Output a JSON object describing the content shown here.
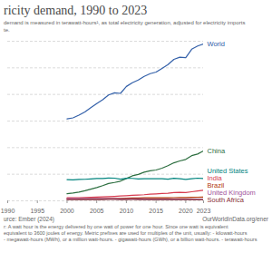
{
  "chart_data": {
    "type": "line",
    "title": "ricity demand, 1990 to 2023",
    "subtitle": [
      "demand is measured in terawatt-hours¹, as total electricity generation, adjusted for electricity imports",
      "te."
    ],
    "source": "urce: Ember (2024)",
    "url": "OurWorldInData.org/ener",
    "note": [
      "r: A watt hour is the energy delivered by one watt of power for one hour. Since one watt is equivalent",
      "equivalent to 3600 joules of energy. Metric prefixes are used for multiples of the unit, usually: - kilowatt-hours",
      "- megawatt-hours (MWh), or a million watt-hours. - gigawatt-hours (GWh), or a billion watt-hours. - terawatt-hours"
    ],
    "x": [
      2000,
      2001,
      2002,
      2003,
      2004,
      2005,
      2006,
      2007,
      2008,
      2009,
      2010,
      2011,
      2012,
      2013,
      2014,
      2015,
      2016,
      2017,
      2018,
      2019,
      2020,
      2021,
      2022,
      2023
    ],
    "xlim": [
      1990,
      2023
    ],
    "xticks": [
      1990,
      1995,
      2000,
      2005,
      2010,
      2015,
      2020,
      2023
    ],
    "ylim": [
      0,
      30000
    ],
    "yticks": [
      0,
      5000,
      10000,
      15000,
      20000,
      25000,
      30000
    ],
    "tick_labels": "x",
    "grid": true,
    "series": [
      {
        "name": "World",
        "color": "#3360a9",
        "values": [
          15400,
          15600,
          16100,
          16700,
          17500,
          18300,
          19000,
          19900,
          20300,
          20200,
          21500,
          22200,
          22700,
          23400,
          23900,
          24200,
          24900,
          25600,
          26600,
          27000,
          26900,
          28500,
          29100,
          29500
        ]
      },
      {
        "name": "China",
        "color": "#2c6e3f",
        "values": [
          1350,
          1470,
          1650,
          1900,
          2200,
          2500,
          2860,
          3270,
          3450,
          3700,
          4200,
          4700,
          4970,
          5400,
          5650,
          5800,
          6130,
          6600,
          7150,
          7500,
          7780,
          8500,
          8800,
          9400
        ]
      },
      {
        "name": "United States",
        "color": "#00847e",
        "values": [
          3990,
          3930,
          4030,
          4050,
          4120,
          4200,
          4200,
          4290,
          4260,
          4070,
          4240,
          4220,
          4120,
          4160,
          4180,
          4150,
          4140,
          4080,
          4230,
          4150,
          4030,
          4150,
          4260,
          4180
        ]
      },
      {
        "name": "India",
        "color": "#d73c50",
        "values": [
          570,
          580,
          600,
          630,
          670,
          700,
          750,
          800,
          840,
          900,
          960,
          1040,
          1100,
          1150,
          1250,
          1300,
          1370,
          1440,
          1550,
          1600,
          1550,
          1700,
          1850,
          1990
        ]
      },
      {
        "name": "Brazil",
        "color": "#b13507",
        "values": [
          350,
          340,
          360,
          380,
          400,
          410,
          420,
          445,
          460,
          460,
          500,
          520,
          540,
          560,
          580,
          580,
          580,
          590,
          600,
          620,
          610,
          650,
          680,
          700
        ]
      },
      {
        "name": "United Kingdom",
        "color": "#a2559c",
        "values": [
          390,
          395,
          395,
          400,
          400,
          405,
          400,
          395,
          390,
          375,
          380,
          365,
          360,
          355,
          335,
          335,
          335,
          330,
          330,
          320,
          310,
          315,
          305,
          300
        ]
      },
      {
        "name": "South Africa",
        "color": "#883039",
        "values": [
          210,
          215,
          220,
          230,
          240,
          245,
          250,
          260,
          255,
          245,
          250,
          255,
          250,
          245,
          245,
          240,
          240,
          240,
          240,
          235,
          225,
          230,
          225,
          220
        ]
      }
    ]
  }
}
